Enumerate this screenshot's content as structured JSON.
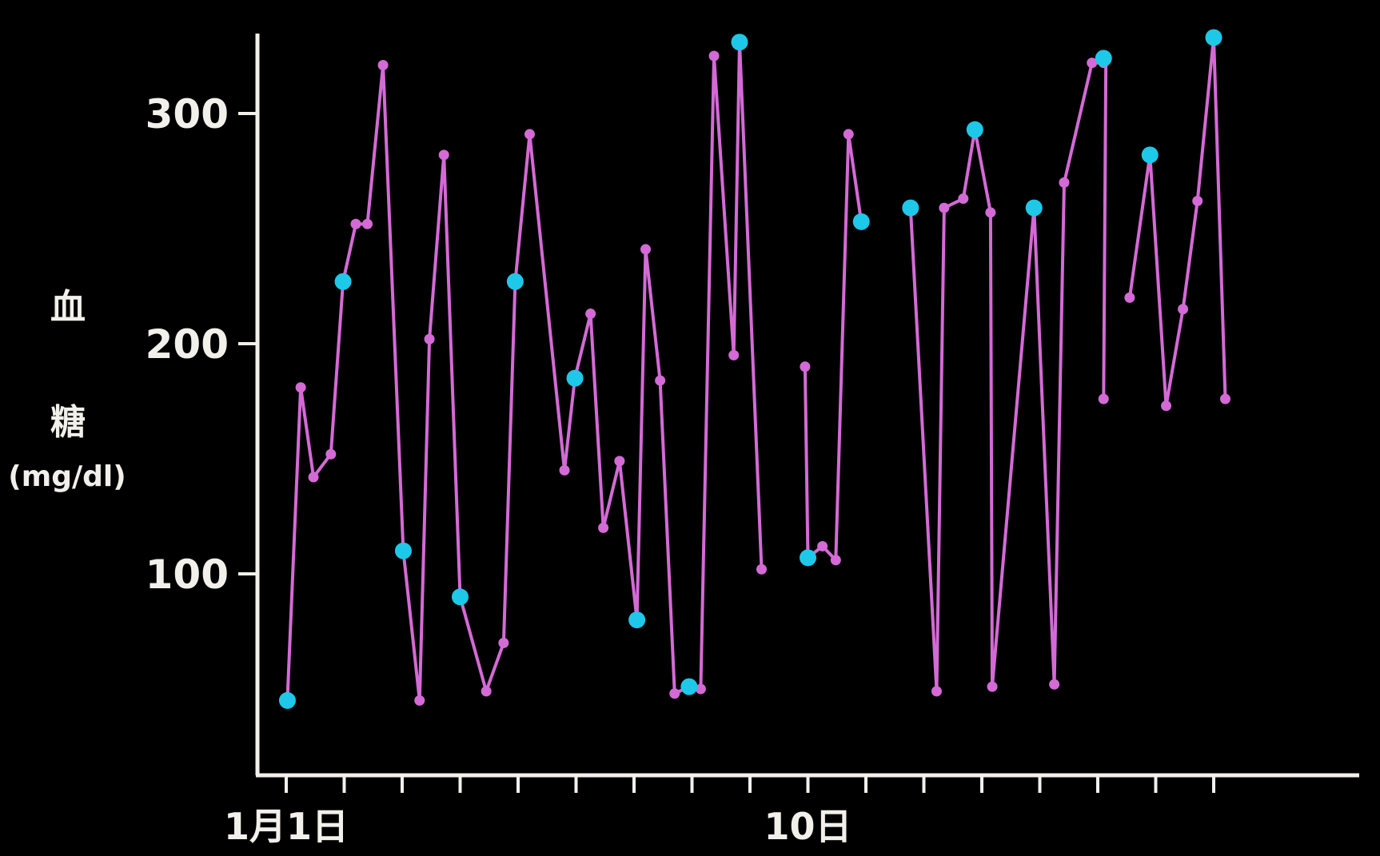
{
  "chart_data": {
    "type": "line",
    "ylabel": [
      "血",
      "糖",
      "(mg/dl)"
    ],
    "ylim": [
      0,
      320
    ],
    "xlim": [
      0,
      18
    ],
    "yticks": [
      100,
      200,
      300
    ],
    "xticks": [
      0,
      1,
      2,
      3,
      4,
      5,
      6,
      7,
      8,
      9,
      10,
      11,
      12,
      13,
      14,
      15,
      16
    ],
    "xtick_labels": [
      {
        "x": 0,
        "label": "1月1日"
      },
      {
        "x": 9,
        "label": "10日"
      }
    ],
    "grid": false,
    "colors": {
      "line": "#d46ad6",
      "point": "#d46ad6",
      "highlight": "#1ec8e8",
      "axis": "#f2f0ea",
      "background": "#000000"
    },
    "series": [
      {
        "segments": [
          [
            [
              0.02,
              45
            ],
            [
              0.25,
              181
            ],
            [
              0.47,
              142
            ],
            [
              0.77,
              152
            ],
            [
              0.98,
              227
            ],
            [
              1.2,
              252
            ],
            [
              1.4,
              252
            ],
            [
              1.67,
              321
            ],
            [
              2.02,
              110
            ],
            [
              2.3,
              45
            ],
            [
              2.47,
              202
            ],
            [
              2.72,
              282
            ],
            [
              3.0,
              90
            ],
            [
              3.45,
              49
            ],
            [
              3.75,
              70
            ],
            [
              3.95,
              227
            ],
            [
              4.2,
              291
            ],
            [
              4.8,
              145
            ],
            [
              4.98,
              185
            ],
            [
              5.25,
              213
            ],
            [
              5.47,
              120
            ],
            [
              5.75,
              149
            ],
            [
              6.05,
              80
            ],
            [
              6.2,
              241
            ],
            [
              6.45,
              184
            ],
            [
              6.7,
              48
            ],
            [
              6.95,
              51
            ],
            [
              7.15,
              50
            ],
            [
              7.38,
              325
            ],
            [
              7.72,
              195
            ],
            [
              7.82,
              331
            ],
            [
              8.2,
              102
            ]
          ],
          [
            [
              8.95,
              190
            ],
            [
              9.0,
              107
            ],
            [
              9.25,
              112
            ],
            [
              9.48,
              106
            ],
            [
              9.7,
              291
            ],
            [
              9.92,
              253
            ]
          ],
          [
            [
              10.77,
              259
            ],
            [
              11.22,
              49
            ],
            [
              11.35,
              259
            ],
            [
              11.68,
              263
            ],
            [
              11.88,
              293
            ],
            [
              12.15,
              257
            ],
            [
              12.18,
              51
            ],
            [
              12.9,
              259
            ],
            [
              13.25,
              52
            ],
            [
              13.42,
              270
            ],
            [
              13.9,
              322
            ],
            [
              14.1,
              322
            ],
            [
              14.14,
              324
            ],
            [
              14.1,
              176
            ]
          ],
          [
            [
              14.55,
              220
            ],
            [
              14.9,
              282
            ],
            [
              15.18,
              173
            ],
            [
              15.47,
              215
            ],
            [
              15.72,
              262
            ],
            [
              16.0,
              333
            ],
            [
              16.2,
              176
            ]
          ]
        ],
        "highlighted": [
          [
            0.02,
            45
          ],
          [
            0.98,
            227
          ],
          [
            2.02,
            110
          ],
          [
            3.0,
            90
          ],
          [
            3.95,
            227
          ],
          [
            4.98,
            185
          ],
          [
            6.05,
            80
          ],
          [
            6.95,
            51
          ],
          [
            7.82,
            331
          ],
          [
            9.0,
            107
          ],
          [
            9.92,
            253
          ],
          [
            10.77,
            259
          ],
          [
            11.88,
            293
          ],
          [
            12.9,
            259
          ],
          [
            14.1,
            324
          ],
          [
            14.9,
            282
          ],
          [
            16.0,
            333
          ]
        ]
      }
    ]
  }
}
